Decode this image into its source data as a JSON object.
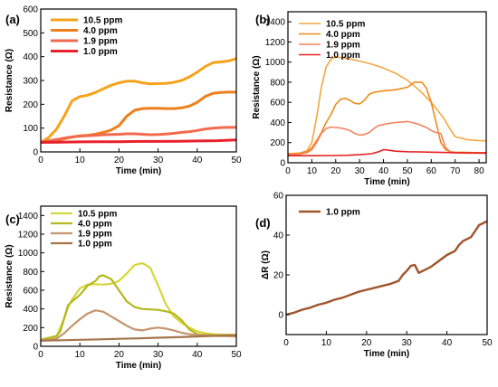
{
  "chart_data": [
    {
      "id": "a",
      "type": "line",
      "panel_label": "(a)",
      "xlabel": "Time (min)",
      "ylabel": "Resistance (Ω)",
      "xlim": [
        0,
        50
      ],
      "ylim": [
        0,
        600
      ],
      "xticks": [
        0,
        10,
        20,
        30,
        40,
        50
      ],
      "yticks": [
        0,
        100,
        200,
        300,
        400,
        500,
        600
      ],
      "legend_position": "top-left",
      "series": [
        {
          "name": "10.5 ppm",
          "color": "#f7a21b",
          "x": [
            0,
            2,
            4,
            6,
            8,
            10,
            12,
            14,
            16,
            18,
            20,
            22,
            24,
            26,
            28,
            30,
            32,
            34,
            36,
            38,
            40,
            42,
            44,
            46,
            48,
            50
          ],
          "y": [
            40,
            60,
            95,
            150,
            215,
            232,
            238,
            250,
            265,
            280,
            290,
            297,
            297,
            290,
            286,
            287,
            288,
            292,
            300,
            315,
            335,
            358,
            375,
            378,
            382,
            392
          ]
        },
        {
          "name": "4.0 ppm",
          "color": "#ee7f1d",
          "x": [
            0,
            2,
            4,
            6,
            8,
            10,
            12,
            14,
            16,
            18,
            20,
            22,
            24,
            26,
            28,
            30,
            32,
            34,
            36,
            38,
            40,
            42,
            44,
            46,
            48,
            50
          ],
          "y": [
            40,
            44,
            48,
            55,
            62,
            68,
            70,
            75,
            82,
            92,
            110,
            150,
            175,
            182,
            183,
            183,
            182,
            182,
            185,
            192,
            208,
            232,
            246,
            250,
            251,
            251
          ]
        },
        {
          "name": "1.9 ppm",
          "color": "#f26a4e",
          "x": [
            0,
            2,
            4,
            6,
            8,
            10,
            12,
            14,
            16,
            18,
            20,
            22,
            24,
            26,
            28,
            30,
            32,
            34,
            36,
            38,
            40,
            42,
            44,
            46,
            48,
            50
          ],
          "y": [
            40,
            46,
            52,
            58,
            63,
            66,
            68,
            70,
            72,
            73,
            74,
            76,
            76,
            74,
            72,
            73,
            75,
            78,
            82,
            85,
            90,
            96,
            100,
            102,
            103,
            103
          ]
        },
        {
          "name": "1.0 ppm",
          "color": "#e8212b",
          "x": [
            0,
            5,
            10,
            15,
            20,
            25,
            30,
            35,
            40,
            45,
            50
          ],
          "y": [
            40,
            41,
            42,
            43,
            43,
            44,
            44,
            45,
            46,
            47,
            50
          ]
        }
      ]
    },
    {
      "id": "b",
      "type": "line",
      "panel_label": "(b)",
      "xlabel": "Time (min)",
      "ylabel": "Resistance (Ω)",
      "xlim": [
        0,
        83
      ],
      "ylim": [
        0,
        1500
      ],
      "xticks": [
        0,
        10,
        20,
        30,
        40,
        50,
        60,
        70,
        80
      ],
      "yticks": [
        0,
        200,
        400,
        600,
        800,
        1000,
        1200,
        1400
      ],
      "legend_position": "top-left",
      "series": [
        {
          "name": "10.5 ppm",
          "color": "#f5a640",
          "x": [
            0,
            5,
            8,
            10,
            12,
            14,
            16,
            18,
            20,
            22,
            25,
            30,
            35,
            40,
            45,
            50,
            55,
            60,
            65,
            68,
            70,
            75,
            80,
            83
          ],
          "y": [
            90,
            95,
            120,
            200,
            450,
            750,
            950,
            1030,
            1050,
            1045,
            1035,
            1010,
            980,
            940,
            890,
            820,
            720,
            600,
            450,
            330,
            260,
            230,
            220,
            218
          ]
        },
        {
          "name": "4.0 ppm",
          "color": "#ef8a1c",
          "x": [
            0,
            5,
            8,
            10,
            12,
            14,
            16,
            18,
            20,
            22,
            24,
            26,
            28,
            30,
            32,
            34,
            36,
            40,
            45,
            50,
            53,
            56,
            58,
            60,
            62,
            64,
            66,
            68,
            70,
            75,
            80,
            83
          ],
          "y": [
            90,
            95,
            110,
            150,
            220,
            300,
            400,
            480,
            580,
            630,
            640,
            620,
            590,
            585,
            620,
            680,
            700,
            715,
            725,
            750,
            800,
            800,
            740,
            600,
            400,
            200,
            130,
            110,
            105,
            102,
            100,
            100
          ]
        },
        {
          "name": "1.9 ppm",
          "color": "#f3845f",
          "x": [
            0,
            5,
            8,
            10,
            12,
            14,
            16,
            18,
            20,
            22,
            24,
            26,
            28,
            30,
            32,
            34,
            36,
            38,
            40,
            42,
            45,
            48,
            50,
            52,
            55,
            58,
            60,
            62,
            64,
            66,
            68,
            70,
            75,
            80,
            83
          ],
          "y": [
            80,
            85,
            100,
            130,
            200,
            290,
            340,
            355,
            350,
            345,
            335,
            320,
            290,
            275,
            280,
            300,
            340,
            370,
            380,
            390,
            400,
            405,
            410,
            400,
            380,
            350,
            320,
            300,
            290,
            150,
            110,
            100,
            95,
            95,
            95
          ]
        },
        {
          "name": "1.0 ppm",
          "color": "#e52022",
          "x": [
            0,
            10,
            20,
            25,
            30,
            35,
            38,
            40,
            42,
            45,
            50,
            55,
            60,
            65,
            70,
            75,
            80,
            83
          ],
          "y": [
            70,
            70,
            72,
            75,
            80,
            90,
            110,
            130,
            125,
            115,
            110,
            108,
            105,
            102,
            100,
            99,
            98,
            98
          ]
        }
      ]
    },
    {
      "id": "c",
      "type": "line",
      "panel_label": "(c)",
      "xlabel": "Time (min)",
      "ylabel": "Resistance (Ω)",
      "xlim": [
        0,
        50
      ],
      "ylim": [
        0,
        1500
      ],
      "xticks": [
        0,
        10,
        20,
        30,
        40,
        50
      ],
      "yticks": [
        0,
        200,
        400,
        600,
        800,
        1000,
        1200,
        1400
      ],
      "legend_position": "top-left",
      "series": [
        {
          "name": "10.5 ppm",
          "color": "#d6d63a",
          "x": [
            0,
            2,
            4,
            5,
            6,
            7,
            8,
            10,
            12,
            14,
            16,
            18,
            20,
            22,
            24,
            26,
            28,
            30,
            32,
            34,
            36,
            38,
            40,
            42,
            44,
            46,
            48,
            50
          ],
          "y": [
            60,
            80,
            100,
            200,
            300,
            420,
            500,
            620,
            660,
            665,
            660,
            670,
            700,
            780,
            870,
            890,
            840,
            650,
            450,
            320,
            250,
            200,
            160,
            140,
            130,
            125,
            125,
            125
          ]
        },
        {
          "name": "4.0 ppm",
          "color": "#b5b81e",
          "x": [
            0,
            2,
            4,
            5,
            6,
            7,
            8,
            10,
            12,
            14,
            15,
            16,
            18,
            20,
            22,
            24,
            26,
            28,
            30,
            32,
            34,
            36,
            38,
            40,
            42,
            44,
            46,
            48,
            50
          ],
          "y": [
            70,
            90,
            110,
            160,
            300,
            440,
            480,
            550,
            650,
            700,
            750,
            760,
            720,
            600,
            480,
            420,
            400,
            395,
            390,
            375,
            350,
            280,
            180,
            130,
            120,
            120,
            120,
            120,
            120
          ]
        },
        {
          "name": "1.9 ppm",
          "color": "#c4956e",
          "x": [
            0,
            4,
            6,
            8,
            10,
            12,
            14,
            16,
            18,
            20,
            22,
            24,
            26,
            28,
            30,
            32,
            34,
            36,
            38,
            40,
            42,
            44,
            46,
            48,
            50
          ],
          "y": [
            60,
            80,
            140,
            220,
            290,
            350,
            385,
            370,
            320,
            270,
            220,
            180,
            170,
            190,
            200,
            190,
            170,
            145,
            130,
            120,
            115,
            112,
            110,
            108,
            105
          ]
        },
        {
          "name": "1.0 ppm",
          "color": "#a6744b",
          "x": [
            0,
            5,
            10,
            15,
            20,
            25,
            30,
            35,
            40,
            45,
            50
          ],
          "y": [
            60,
            65,
            70,
            75,
            80,
            85,
            92,
            98,
            105,
            112,
            120
          ]
        }
      ]
    },
    {
      "id": "d",
      "type": "line",
      "panel_label": "(d)",
      "xlabel": "Time (min)",
      "ylabel": "ΔR (Ω)",
      "xlim": [
        0,
        50
      ],
      "ylim": [
        -10,
        60
      ],
      "xticks": [
        0,
        10,
        20,
        30,
        40,
        50
      ],
      "yticks": [
        0,
        20,
        40,
        60
      ],
      "legend_position": "top-left",
      "series": [
        {
          "name": "1.0 ppm",
          "color": "#a0542c",
          "x": [
            0,
            2,
            4,
            6,
            8,
            10,
            12,
            14,
            16,
            18,
            20,
            22,
            24,
            26,
            28,
            29,
            30,
            31,
            32,
            33,
            34,
            36,
            38,
            40,
            42,
            43,
            44,
            46,
            48,
            50
          ],
          "y": [
            0,
            1,
            2.5,
            3.5,
            5,
            6,
            7.5,
            8.5,
            10,
            11.5,
            12.5,
            13.5,
            14.5,
            15.5,
            17,
            20,
            22,
            24.5,
            25,
            21,
            22,
            24,
            27,
            30,
            32,
            35,
            37,
            39,
            45,
            47
          ]
        }
      ]
    }
  ]
}
